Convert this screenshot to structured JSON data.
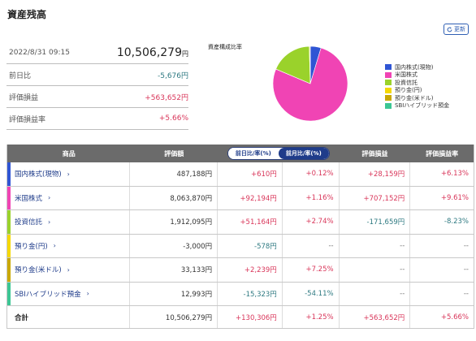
{
  "page_title": "資産残高",
  "refresh_label": "更新",
  "summary": {
    "date": "2022/8/31 09:15",
    "total": "10,506,279",
    "total_unit": "円",
    "rows": [
      {
        "label": "前日比",
        "value": "-5,676円",
        "tone": "neg"
      },
      {
        "label": "評価損益",
        "value": "+563,652円",
        "tone": "pos"
      },
      {
        "label": "評価損益率",
        "value": "+5.66%",
        "tone": "pos"
      }
    ]
  },
  "chart_data": {
    "type": "pie",
    "title": "資産構成比率",
    "labels": [
      "国内株式(現物)",
      "米国株式",
      "投資信託",
      "預り金(円)",
      "預り金(米ドル)",
      "SBIハイブリッド預金"
    ],
    "values": [
      487188,
      8063870,
      1912095,
      0,
      33133,
      12993
    ],
    "colors": [
      "#2f55d4",
      "#f044b4",
      "#9ad22b",
      "#f5d800",
      "#c9a800",
      "#3cc694"
    ],
    "legend": "right"
  },
  "table": {
    "headers": {
      "product": "商品",
      "valuation": "評価額",
      "toggle_prev_day": "前日比/率(%)",
      "toggle_prev_month": "前月比/率(%)",
      "pl": "評価損益",
      "pl_rate": "評価損益率"
    },
    "rows": [
      {
        "name": "国内株式(現物)",
        "color": "#2f55d4",
        "value": "487,188円",
        "chg": "+610円",
        "chg_tone": "pos",
        "rate": "+0.12%",
        "rate_tone": "pos",
        "pl": "+28,159円",
        "pl_tone": "pos",
        "plr": "+6.13%",
        "plr_tone": "pos"
      },
      {
        "name": "米国株式",
        "color": "#f044b4",
        "value": "8,063,870円",
        "chg": "+92,194円",
        "chg_tone": "pos",
        "rate": "+1.16%",
        "rate_tone": "pos",
        "pl": "+707,152円",
        "pl_tone": "pos",
        "plr": "+9.61%",
        "plr_tone": "pos"
      },
      {
        "name": "投資信託",
        "color": "#9ad22b",
        "value": "1,912,095円",
        "chg": "+51,164円",
        "chg_tone": "pos",
        "rate": "+2.74%",
        "rate_tone": "pos",
        "pl": "-171,659円",
        "pl_tone": "neg",
        "plr": "-8.23%",
        "plr_tone": "neg"
      },
      {
        "name": "預り金(円)",
        "color": "#f5d800",
        "value": "-3,000円",
        "chg": "-578円",
        "chg_tone": "neg",
        "rate": "--",
        "rate_tone": "dim",
        "pl": "--",
        "pl_tone": "dim",
        "plr": "--",
        "plr_tone": "dim"
      },
      {
        "name": "預り金(米ドル)",
        "color": "#c9a800",
        "value": "33,133円",
        "chg": "+2,239円",
        "chg_tone": "pos",
        "rate": "+7.25%",
        "rate_tone": "pos",
        "pl": "--",
        "pl_tone": "dim",
        "plr": "--",
        "plr_tone": "dim"
      },
      {
        "name": "SBIハイブリッド預金",
        "color": "#3cc694",
        "value": "12,993円",
        "chg": "-15,323円",
        "chg_tone": "neg",
        "rate": "-54.11%",
        "rate_tone": "neg",
        "pl": "--",
        "pl_tone": "dim",
        "plr": "--",
        "plr_tone": "dim"
      }
    ],
    "total": {
      "name": "合計",
      "value": "10,506,279円",
      "chg": "+130,306円",
      "chg_tone": "pos",
      "rate": "+1.25%",
      "rate_tone": "pos",
      "pl": "+563,652円",
      "pl_tone": "pos",
      "plr": "+5.66%",
      "plr_tone": "pos"
    }
  }
}
